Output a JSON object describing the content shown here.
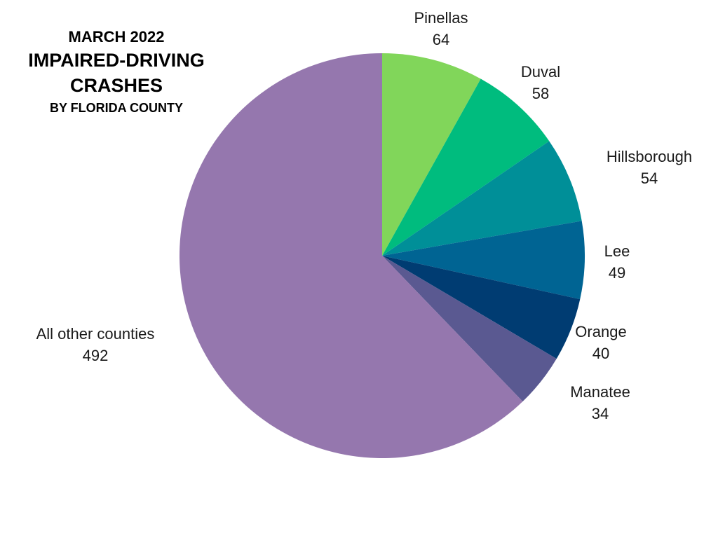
{
  "title": {
    "line1": "MARCH 2022",
    "line2": "IMPAIRED-DRIVING",
    "line3": "CRASHES",
    "line4": "BY FLORIDA COUNTY"
  },
  "chart_data": {
    "type": "pie",
    "title": "MARCH 2022 IMPAIRED-DRIVING CRASHES BY FLORIDA COUNTY",
    "start_angle_deg": 0,
    "direction": "clockwise",
    "legend": "none",
    "slices": [
      {
        "name": "Pinellas",
        "value": 64,
        "color": "#81D65A"
      },
      {
        "name": "Duval",
        "value": 58,
        "color": "#00BC7E"
      },
      {
        "name": "Hillsborough",
        "value": 54,
        "color": "#008F98"
      },
      {
        "name": "Lee",
        "value": 49,
        "color": "#006493"
      },
      {
        "name": "Orange",
        "value": 40,
        "color": "#003C72"
      },
      {
        "name": "Manatee",
        "value": 34,
        "color": "#5A5991"
      },
      {
        "name": "All other counties",
        "value": 492,
        "color": "#9577AE"
      }
    ]
  }
}
